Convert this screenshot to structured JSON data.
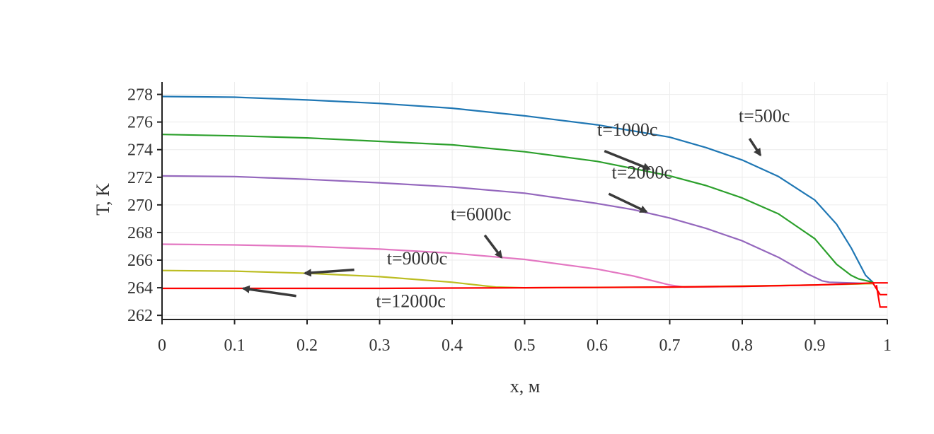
{
  "chart_data": {
    "type": "line",
    "xlabel": "x, м",
    "ylabel": "T, K",
    "xlim": [
      0,
      1
    ],
    "ylim": [
      261.7,
      278.9
    ],
    "grid": true,
    "xticks": [
      "0",
      "0.1",
      "0.2",
      "0.3",
      "0.4",
      "0.5",
      "0.6",
      "0.7",
      "0.8",
      "0.9",
      "1"
    ],
    "yticks": [
      "262",
      "264",
      "266",
      "268",
      "270",
      "272",
      "274",
      "276",
      "278"
    ],
    "series": [
      {
        "color": "#1f77b4",
        "x": [
          0,
          0.1,
          0.2,
          0.3,
          0.4,
          0.5,
          0.6,
          0.7,
          0.75,
          0.8,
          0.85,
          0.9,
          0.93,
          0.95,
          0.97,
          0.98
        ],
        "y": [
          277.85,
          277.8,
          277.6,
          277.35,
          277.0,
          276.45,
          275.8,
          274.9,
          274.15,
          273.25,
          272.05,
          270.35,
          268.6,
          266.9,
          264.9,
          264.4
        ]
      },
      {
        "color": "#2ca02c",
        "x": [
          0,
          0.1,
          0.2,
          0.3,
          0.4,
          0.5,
          0.6,
          0.7,
          0.75,
          0.8,
          0.85,
          0.9,
          0.93,
          0.95,
          0.96,
          0.98
        ],
        "y": [
          275.1,
          275.0,
          274.85,
          274.6,
          274.35,
          273.85,
          273.15,
          272.1,
          271.4,
          270.5,
          269.35,
          267.55,
          265.7,
          264.9,
          264.65,
          264.4
        ]
      },
      {
        "color": "#9467bd",
        "x": [
          0,
          0.1,
          0.2,
          0.3,
          0.4,
          0.5,
          0.6,
          0.65,
          0.7,
          0.75,
          0.8,
          0.85,
          0.89,
          0.91,
          0.92,
          0.98
        ],
        "y": [
          272.1,
          272.05,
          271.85,
          271.6,
          271.3,
          270.85,
          270.1,
          269.65,
          269.05,
          268.3,
          267.4,
          266.2,
          265.0,
          264.5,
          264.4,
          264.3
        ]
      },
      {
        "color": "#e377c2",
        "x": [
          0,
          0.1,
          0.2,
          0.3,
          0.4,
          0.5,
          0.6,
          0.65,
          0.7,
          0.72,
          0.8,
          0.9,
          0.98
        ],
        "y": [
          267.15,
          267.1,
          267.0,
          266.8,
          266.5,
          266.05,
          265.35,
          264.85,
          264.2,
          264.05,
          264.1,
          264.2,
          264.3
        ]
      },
      {
        "color": "#bcbd22",
        "x": [
          0,
          0.1,
          0.2,
          0.3,
          0.4,
          0.46,
          0.5,
          0.7,
          0.9,
          0.98
        ],
        "y": [
          265.25,
          265.2,
          265.05,
          264.8,
          264.4,
          264.05,
          264.0,
          264.05,
          264.2,
          264.3
        ]
      },
      {
        "color": "#ff0000",
        "x": [
          0,
          0.1,
          0.2,
          0.3,
          0.4,
          0.5,
          0.6,
          0.7,
          0.8,
          0.9,
          0.96,
          0.98,
          0.99,
          1.0
        ],
        "y": [
          263.95,
          263.95,
          263.95,
          263.95,
          263.98,
          264.0,
          264.02,
          264.05,
          264.1,
          264.2,
          264.3,
          264.35,
          264.35,
          264.35
        ]
      }
    ],
    "annotations": [
      {
        "text": "t=500с",
        "label_x": 0.795,
        "label_y": 276.0,
        "arrow_from": [
          0.81,
          274.8
        ],
        "arrow_to": [
          0.825,
          273.6
        ]
      },
      {
        "text": "t=1000с",
        "label_x": 0.6,
        "label_y": 275.0,
        "arrow_from": [
          0.61,
          273.9
        ],
        "arrow_to": [
          0.672,
          272.6
        ]
      },
      {
        "text": "t=2000с",
        "label_x": 0.62,
        "label_y": 271.9,
        "arrow_from": [
          0.616,
          270.8
        ],
        "arrow_to": [
          0.668,
          269.5
        ]
      },
      {
        "text": "t=6000с",
        "label_x": 0.398,
        "label_y": 268.9,
        "arrow_from": [
          0.445,
          267.8
        ],
        "arrow_to": [
          0.468,
          266.2
        ]
      },
      {
        "text": "t=9000с",
        "label_x": 0.31,
        "label_y": 265.7,
        "arrow_from": [
          0.265,
          265.3
        ],
        "arrow_to": [
          0.197,
          265.05
        ]
      },
      {
        "text": "t=12000с",
        "label_x": 0.295,
        "label_y": 262.6,
        "arrow_from": [
          0.185,
          263.4
        ],
        "arrow_to": [
          0.112,
          263.95
        ]
      }
    ]
  }
}
